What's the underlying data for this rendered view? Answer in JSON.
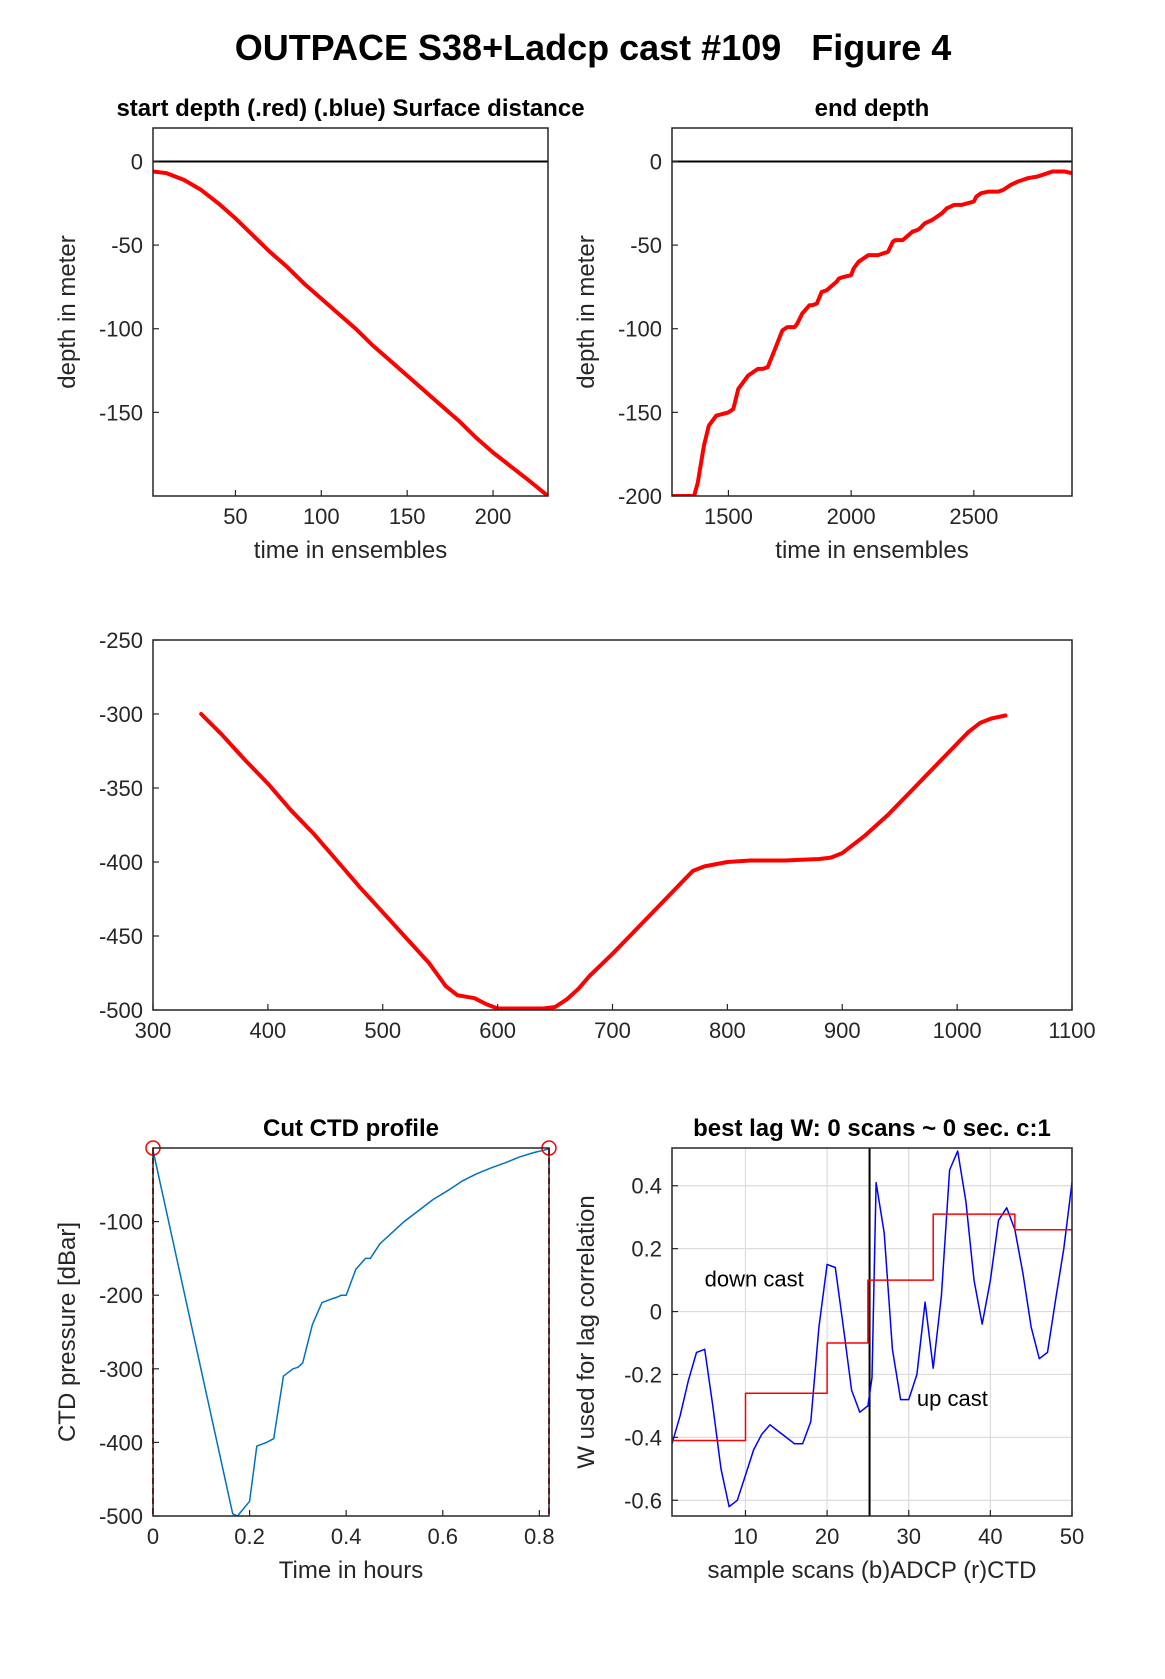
{
  "figure_title": "OUTPACE S38+Ladcp cast #109   Figure 4",
  "chart_data": [
    {
      "id": "p1",
      "type": "line",
      "title": "start depth (.red) (.blue) Surface distance",
      "xlabel": "time in ensembles",
      "ylabel": "depth in meter",
      "xlim": [
        2,
        232
      ],
      "ylim": [
        -200,
        20
      ],
      "xticks": [
        50,
        100,
        150,
        200
      ],
      "yticks": [
        0,
        -50,
        -100,
        -150
      ],
      "grid": false,
      "reflines": [
        {
          "y": 0,
          "color": "#000000"
        }
      ],
      "series": [
        {
          "color": "#ff0000",
          "width": 4,
          "x": [
            2,
            10,
            20,
            30,
            40,
            50,
            60,
            70,
            80,
            90,
            100,
            110,
            120,
            130,
            140,
            150,
            160,
            170,
            180,
            190,
            200,
            210,
            220,
            232
          ],
          "y": [
            -6,
            -7,
            -11,
            -17,
            -25,
            -34,
            -44,
            -54,
            -63,
            -73,
            -82,
            -91,
            -100,
            -110,
            -119,
            -128,
            -137,
            -146,
            -155,
            -165,
            -174,
            -182,
            -190,
            -200
          ]
        }
      ]
    },
    {
      "id": "p2",
      "type": "line",
      "title": "end depth",
      "xlabel": "time in ensembles",
      "ylabel": "depth in meter",
      "xlim": [
        1270,
        2900
      ],
      "ylim": [
        -200,
        20
      ],
      "xticks": [
        1500,
        2000,
        2500
      ],
      "yticks": [
        0,
        -50,
        -100,
        -150,
        -200
      ],
      "grid": false,
      "reflines": [
        {
          "y": 0,
          "color": "#000000"
        }
      ],
      "series": [
        {
          "color": "#ff0000",
          "width": 4,
          "x": [
            1270,
            1360,
            1375,
            1400,
            1420,
            1450,
            1500,
            1520,
            1540,
            1580,
            1620,
            1640,
            1660,
            1690,
            1720,
            1740,
            1770,
            1780,
            1800,
            1830,
            1840,
            1860,
            1880,
            1900,
            1940,
            1950,
            1970,
            2000,
            2010,
            2030,
            2060,
            2070,
            2080,
            2110,
            2150,
            2170,
            2180,
            2210,
            2250,
            2270,
            2280,
            2300,
            2330,
            2370,
            2390,
            2420,
            2450,
            2500,
            2510,
            2530,
            2560,
            2600,
            2620,
            2650,
            2680,
            2700,
            2720,
            2760,
            2800,
            2820,
            2840,
            2870,
            2900
          ],
          "y": [
            -200,
            -200,
            -192,
            -170,
            -158,
            -152,
            -150,
            -148,
            -136,
            -128,
            -124,
            -124,
            -123,
            -112,
            -101,
            -99,
            -99,
            -97,
            -91,
            -86,
            -86,
            -85,
            -78,
            -77,
            -72,
            -70,
            -69,
            -68,
            -64,
            -60,
            -57,
            -56,
            -56,
            -56,
            -54,
            -48,
            -47,
            -47,
            -42,
            -41,
            -40,
            -37,
            -35,
            -31,
            -28,
            -26,
            -26,
            -24,
            -21,
            -19,
            -18,
            -18,
            -17,
            -14,
            -12,
            -11,
            -10,
            -9,
            -7,
            -6,
            -6,
            -6,
            -7
          ]
        }
      ]
    },
    {
      "id": "p3",
      "type": "line",
      "title": "",
      "xlabel": "",
      "ylabel": "",
      "xlim": [
        300,
        1100
      ],
      "ylim": [
        -500,
        -250
      ],
      "xticks": [
        300,
        400,
        500,
        600,
        700,
        800,
        900,
        1000,
        1100
      ],
      "yticks": [
        -250,
        -300,
        -350,
        -400,
        -450,
        -500
      ],
      "grid": false,
      "reflines": [],
      "series": [
        {
          "color": "#ff0000",
          "width": 4,
          "x": [
            342,
            360,
            380,
            400,
            420,
            440,
            460,
            480,
            500,
            520,
            540,
            555,
            565,
            580,
            590,
            600,
            620,
            640,
            650,
            660,
            670,
            680,
            700,
            720,
            740,
            760,
            770,
            780,
            800,
            820,
            850,
            880,
            890,
            900,
            920,
            940,
            960,
            980,
            1000,
            1010,
            1020,
            1030,
            1042
          ],
          "y": [
            -300,
            -314,
            -331,
            -347,
            -365,
            -381,
            -399,
            -417,
            -434,
            -451,
            -468,
            -484,
            -490,
            -492,
            -496,
            -499,
            -499,
            -499,
            -498,
            -493,
            -486,
            -477,
            -462,
            -446,
            -430,
            -414,
            -406,
            -403,
            -400,
            -399,
            -399,
            -398,
            -397,
            -394,
            -382,
            -368,
            -352,
            -336,
            -320,
            -312,
            -306,
            -303,
            -301
          ]
        }
      ]
    },
    {
      "id": "p4",
      "type": "line",
      "title": "Cut CTD profile",
      "xlabel": "Time in hours",
      "ylabel": "CTD pressure [dBar]",
      "xlim": [
        0,
        0.82
      ],
      "ylim": [
        -500,
        0
      ],
      "xticks": [
        0,
        0.2,
        0.4,
        0.6,
        0.8
      ],
      "yticks": [
        -100,
        -200,
        -300,
        -400,
        -500
      ],
      "grid": false,
      "reflines": [],
      "series": [
        {
          "color": "#0072bd",
          "width": 1.5,
          "x": [
            0,
            0.165,
            0.175,
            0.2,
            0.215,
            0.235,
            0.25,
            0.27,
            0.29,
            0.3,
            0.31,
            0.33,
            0.35,
            0.37,
            0.38,
            0.39,
            0.4,
            0.42,
            0.44,
            0.45,
            0.47,
            0.5,
            0.52,
            0.55,
            0.58,
            0.61,
            0.64,
            0.67,
            0.7,
            0.73,
            0.76,
            0.79,
            0.81,
            0.82
          ],
          "y": [
            -3,
            -497,
            -500,
            -480,
            -405,
            -400,
            -395,
            -310,
            -300,
            -298,
            -292,
            -240,
            -210,
            -205,
            -203,
            -200,
            -200,
            -165,
            -150,
            -150,
            -130,
            -112,
            -100,
            -85,
            -70,
            -58,
            -45,
            -35,
            -27,
            -20,
            -12,
            -6,
            -3,
            -1
          ]
        }
      ],
      "markers": [
        {
          "x": 0,
          "y": 0,
          "color": "#ff0000"
        },
        {
          "x": 0.82,
          "y": 0,
          "color": "#ff0000"
        }
      ],
      "vlines": [
        {
          "x": 0,
          "color": "#ff0000"
        },
        {
          "x": 0.82,
          "color": "#ff0000"
        }
      ]
    },
    {
      "id": "p5",
      "type": "line",
      "title": "best lag W: 0 scans ~ 0 sec.  c:1",
      "xlabel": "sample scans (b)ADCP (r)CTD",
      "ylabel": "W used for lag correlation",
      "xlim": [
        1,
        50
      ],
      "ylim": [
        -0.65,
        0.52
      ],
      "xticks": [
        10,
        20,
        30,
        40,
        50
      ],
      "yticks": [
        0.4,
        0.2,
        0,
        -0.2,
        -0.4,
        -0.6
      ],
      "grid": true,
      "vlines": [
        {
          "x": 25.2,
          "color": "#000000"
        }
      ],
      "annotations": [
        {
          "text": "down cast",
          "x": 5,
          "y": 0.08
        },
        {
          "text": "up cast",
          "x": 31,
          "y": -0.3
        }
      ],
      "series": [
        {
          "color": "#0000ff",
          "width": 1.5,
          "x": [
            1,
            2,
            3,
            4,
            5,
            6,
            7,
            8,
            9,
            10,
            11,
            12,
            13,
            14,
            15,
            16,
            17,
            18,
            19,
            20,
            21,
            22,
            23,
            24,
            25,
            25.5,
            26,
            27,
            28,
            29,
            30,
            31,
            32,
            33,
            34,
            35,
            36,
            37,
            38,
            39,
            40,
            41,
            42,
            43,
            44,
            45,
            46,
            47,
            48,
            49,
            50
          ],
          "y": [
            -0.42,
            -0.33,
            -0.22,
            -0.13,
            -0.12,
            -0.3,
            -0.5,
            -0.62,
            -0.6,
            -0.52,
            -0.44,
            -0.39,
            -0.36,
            -0.38,
            -0.4,
            -0.42,
            -0.42,
            -0.35,
            -0.05,
            0.15,
            0.14,
            -0.05,
            -0.25,
            -0.32,
            -0.3,
            -0.21,
            0.41,
            0.25,
            -0.12,
            -0.28,
            -0.28,
            -0.2,
            0.03,
            -0.18,
            0.05,
            0.45,
            0.51,
            0.35,
            0.1,
            -0.04,
            0.1,
            0.29,
            0.33,
            0.26,
            0.12,
            -0.05,
            -0.15,
            -0.13,
            0.04,
            0.2,
            0.41
          ]
        },
        {
          "color": "#ff0000",
          "width": 1.5,
          "step": true,
          "x": [
            1,
            10,
            10,
            20,
            20,
            25,
            25,
            33,
            33,
            43,
            43,
            50
          ],
          "y": [
            -0.41,
            -0.41,
            -0.26,
            -0.26,
            -0.1,
            -0.1,
            0.1,
            0.1,
            0.31,
            0.31,
            0.26,
            0.26
          ]
        }
      ]
    }
  ]
}
